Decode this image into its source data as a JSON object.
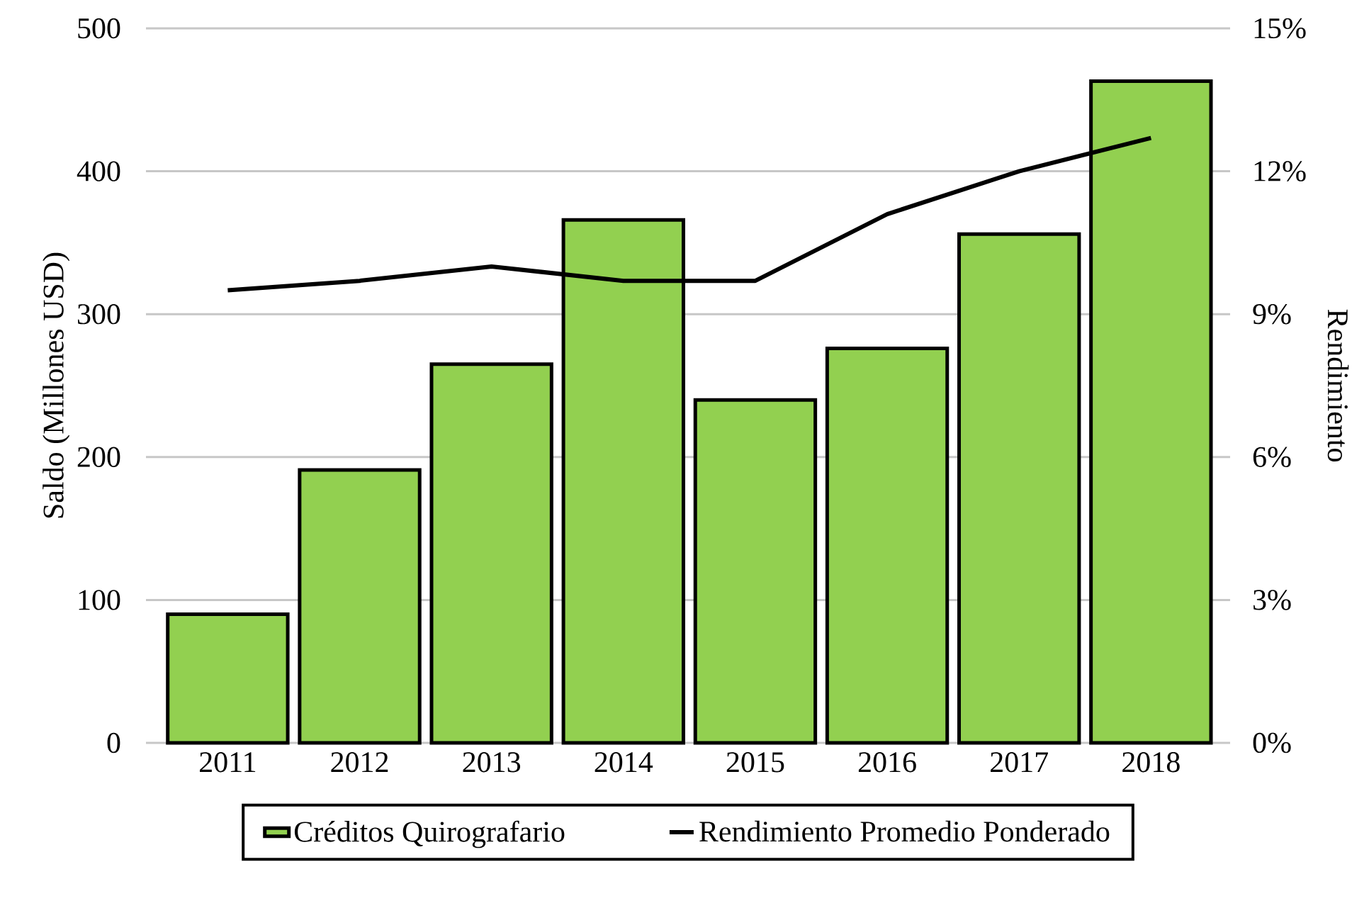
{
  "chart_data": {
    "type": "bar",
    "ylabel": "Saldo (Millones USD)",
    "y2label": "Rendimiento",
    "categories": [
      "2011",
      "2012",
      "2013",
      "2014",
      "2015",
      "2016",
      "2017",
      "2018"
    ],
    "series": [
      {
        "name": "Créditos Quirografario",
        "color": "#92d050",
        "values": [
          90,
          191,
          265,
          366,
          240,
          276,
          356,
          463
        ]
      },
      {
        "name": "Rendimiento Promedio Ponderado",
        "type": "line",
        "axis": "y2",
        "color": "#000000",
        "values": [
          9.5,
          9.7,
          10.0,
          9.7,
          9.7,
          11.1,
          12.0,
          12.7
        ]
      }
    ],
    "ylim": [
      0,
      500
    ],
    "yticks": [
      0,
      100,
      200,
      300,
      400,
      500
    ],
    "y2lim": [
      0,
      15
    ],
    "y2ticks": [
      {
        "value": 0,
        "label": "0%"
      },
      {
        "value": 3,
        "label": "3%"
      },
      {
        "value": 6,
        "label": "6%"
      },
      {
        "value": 9,
        "label": "9%"
      },
      {
        "value": 12,
        "label": "12%"
      },
      {
        "value": 15,
        "label": "15%"
      }
    ],
    "grid": "y",
    "legend": "bottom"
  }
}
